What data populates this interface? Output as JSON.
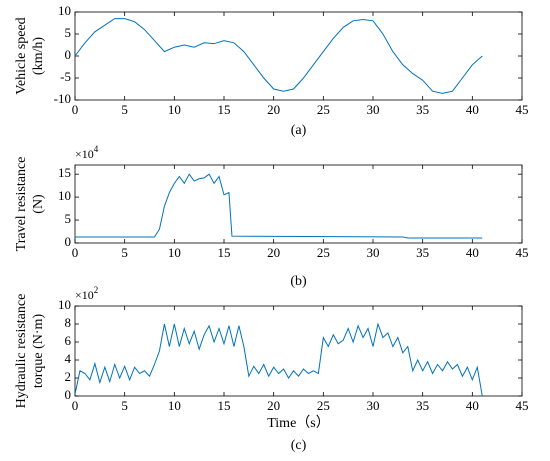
{
  "chart_data": [
    {
      "type": "line",
      "ylabel": [
        "Vehicle speed",
        "(km/h)"
      ],
      "caption": "(a)",
      "xlim": [
        0,
        45
      ],
      "xticks": [
        0,
        5,
        10,
        15,
        20,
        25,
        30,
        35,
        40,
        45
      ],
      "ylim": [
        -10,
        10
      ],
      "yticks": [
        -10,
        -5,
        0,
        5,
        10
      ],
      "series": [
        {
          "color": "#0072bd",
          "x": [
            0,
            1,
            2,
            3,
            4,
            5,
            6,
            7,
            8,
            9,
            10,
            11,
            12,
            13,
            14,
            15,
            16,
            17,
            18,
            19,
            20,
            21,
            22,
            23,
            24,
            25,
            26,
            27,
            28,
            29,
            30,
            31,
            32,
            33,
            34,
            35,
            36,
            37,
            38,
            39,
            40,
            41
          ],
          "values": [
            0,
            3,
            5.5,
            7,
            8.5,
            8.5,
            7.8,
            6,
            3.5,
            1,
            2,
            2.5,
            2,
            3,
            2.8,
            3.5,
            3,
            1,
            -2,
            -5,
            -7.5,
            -8,
            -7.5,
            -5,
            -2,
            1,
            4,
            6.5,
            8,
            8.3,
            8,
            5,
            1,
            -2,
            -4,
            -5.5,
            -8,
            -8.5,
            -8,
            -5,
            -2,
            0
          ]
        }
      ]
    },
    {
      "type": "line",
      "ylabel": [
        "Travel resistance",
        "(N)"
      ],
      "caption": "(b)",
      "multiplier": {
        "base": "×10",
        "exp": "4"
      },
      "xlim": [
        0,
        45
      ],
      "xticks": [
        0,
        5,
        10,
        15,
        20,
        25,
        30,
        35,
        40,
        45
      ],
      "ylim": [
        0,
        17
      ],
      "yticks": [
        0,
        5,
        10,
        15
      ],
      "series": [
        {
          "color": "#0072bd",
          "x": [
            0,
            8,
            8.5,
            9,
            9.5,
            10,
            10.5,
            11,
            11.5,
            12,
            12.5,
            13,
            13.5,
            14,
            14.5,
            15,
            15.5,
            15.8,
            33,
            33.5,
            41
          ],
          "values": [
            1.3,
            1.3,
            3,
            8,
            11,
            13,
            14.5,
            13,
            15,
            13.5,
            14,
            14.2,
            15,
            13,
            14.5,
            10.5,
            11,
            1.5,
            1.3,
            1.1,
            1.1
          ]
        }
      ]
    },
    {
      "type": "line",
      "ylabel": [
        "Hydraulic resistance",
        "torque (N·m)"
      ],
      "caption": "(c)",
      "xlabel": "Time（s）",
      "multiplier": {
        "base": "×10",
        "exp": "2"
      },
      "xlim": [
        0,
        45
      ],
      "xticks": [
        0,
        5,
        10,
        15,
        20,
        25,
        30,
        35,
        40,
        45
      ],
      "ylim": [
        0,
        10
      ],
      "yticks": [
        0,
        2,
        4,
        6,
        8,
        10
      ],
      "series": [
        {
          "color": "#0072bd",
          "x": [
            0,
            0.5,
            1,
            1.5,
            2,
            2.5,
            3,
            3.5,
            4,
            4.5,
            5,
            5.5,
            6,
            6.5,
            7,
            7.5,
            8,
            8.5,
            9,
            9.5,
            10,
            10.5,
            11,
            11.5,
            12,
            12.5,
            13,
            13.5,
            14,
            14.5,
            15,
            15.5,
            16,
            16.5,
            17,
            17.5,
            18,
            18.5,
            19,
            19.5,
            20,
            20.5,
            21,
            21.5,
            22,
            22.5,
            23,
            23.5,
            24,
            24.5,
            25,
            25.5,
            26,
            26.5,
            27,
            27.5,
            28,
            28.5,
            29,
            29.5,
            30,
            30.5,
            31,
            31.5,
            32,
            32.5,
            33,
            33.5,
            34,
            34.5,
            35,
            35.5,
            36,
            36.5,
            37,
            37.5,
            38,
            38.5,
            39,
            39.5,
            40,
            40.5,
            41
          ],
          "values": [
            0.2,
            2.8,
            2.5,
            1.8,
            3.6,
            1.5,
            3.2,
            1.6,
            3.5,
            2,
            3.3,
            1.8,
            3.2,
            2.5,
            2.8,
            2.2,
            3.5,
            5,
            8,
            5.5,
            8,
            5.5,
            7.5,
            5.8,
            7.2,
            5.2,
            6.8,
            7.8,
            6,
            7.5,
            5.8,
            7.8,
            5.5,
            7.8,
            5.5,
            2.2,
            3.3,
            2.5,
            3.5,
            2.2,
            3.2,
            2.5,
            3,
            2,
            2.8,
            2.2,
            3,
            2.5,
            2.8,
            2.5,
            6.5,
            5.5,
            6.8,
            5.8,
            6.2,
            7.5,
            6,
            7.8,
            6.5,
            7.5,
            5.5,
            8,
            6.5,
            7,
            5.5,
            6.5,
            4.8,
            5.5,
            2.8,
            4,
            2.8,
            3.8,
            2.5,
            3.5,
            2.8,
            3.8,
            3,
            3.5,
            2.2,
            3.2,
            1.8,
            3.2,
            0
          ]
        }
      ]
    }
  ]
}
